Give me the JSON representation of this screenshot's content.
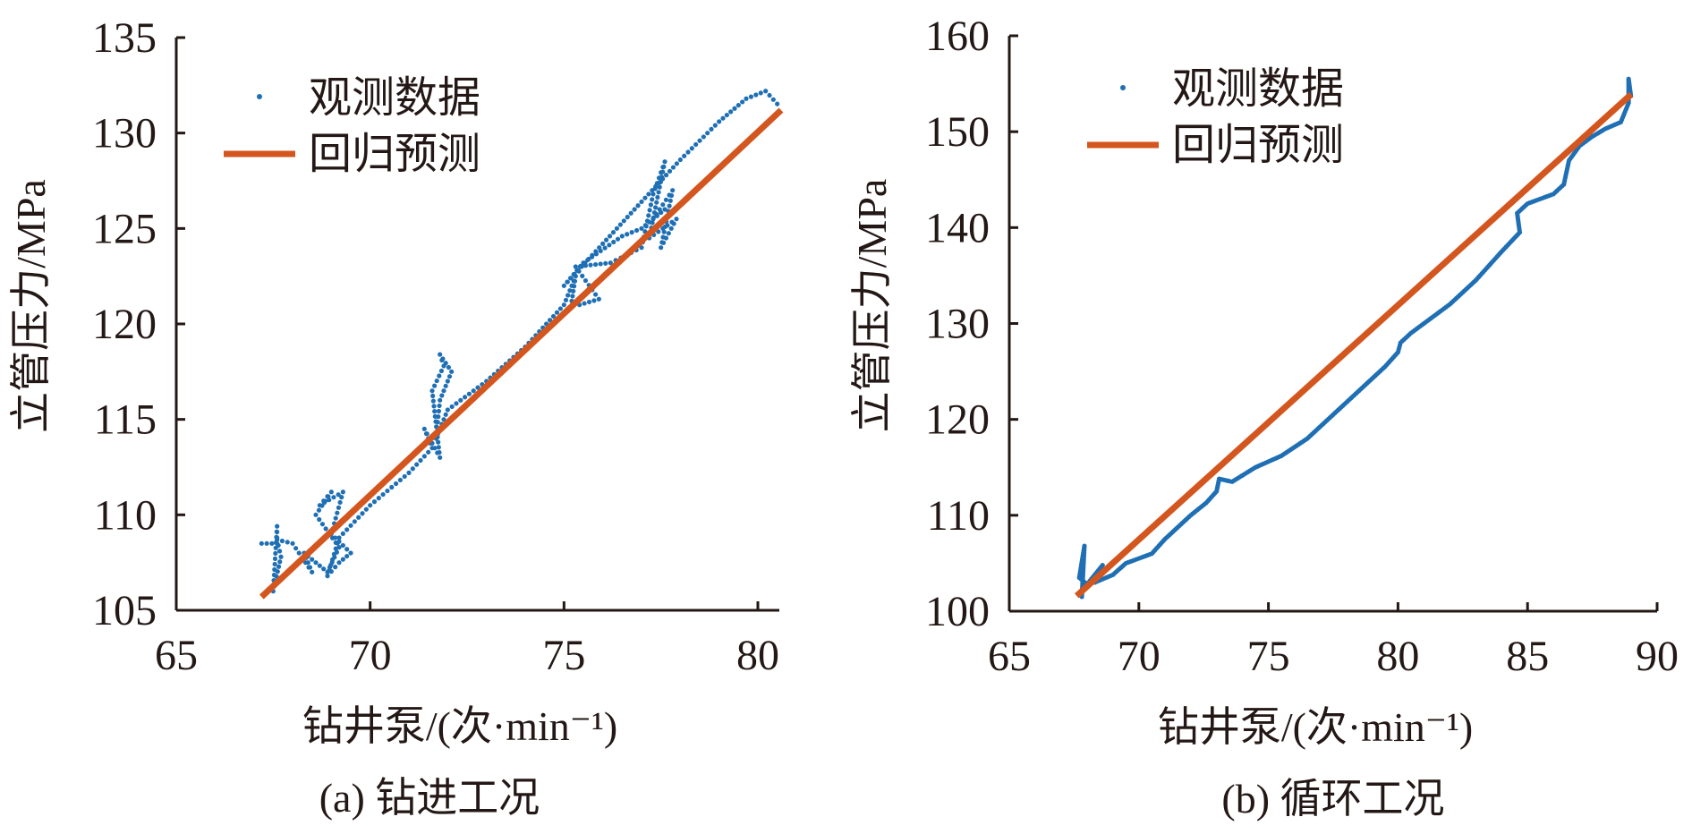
{
  "colors": {
    "observed": "#1f6fb4",
    "regression": "#d4561f",
    "axis": "#231815"
  },
  "chart_data": [
    {
      "type": "scatter",
      "title": "(a) 钻进工况",
      "xlabel": "钻井泵/(次·min⁻¹)",
      "ylabel": "立管压力/MPa",
      "xlim": [
        65,
        80.6
      ],
      "ylim": [
        105,
        135
      ],
      "xticks": [
        "65",
        "70",
        "75",
        "80"
      ],
      "yticks": [
        "105",
        "110",
        "115",
        "120",
        "125",
        "130",
        "135"
      ],
      "legend": {
        "position": "top-left",
        "entries": [
          "观测数据",
          "回归预测"
        ]
      },
      "series": [
        {
          "name": "观测数据",
          "kind": "dots",
          "x": [
            67.2,
            67.6,
            67.6,
            67.5,
            67.7,
            67.6,
            68.0,
            68.5,
            68.3,
            68.9,
            69.2,
            68.6,
            69.0,
            68.7,
            69.3,
            69.0,
            69.5,
            69.2,
            68.9,
            69.2,
            70.0,
            71.0,
            71.6,
            71.4,
            71.8,
            71.6,
            71.9,
            71.8,
            72.1,
            71.8,
            71.7,
            72.0,
            73.0,
            74.0,
            75.0,
            75.3,
            75.2,
            75.4,
            75.9,
            75.3,
            76.2,
            77.0,
            77.3,
            77.6,
            77.2,
            77.9,
            77.5,
            77.8,
            77.3,
            77.6,
            77.0,
            76.5,
            75.5,
            75.0,
            76.0,
            77.0,
            78.0,
            79.0,
            79.7,
            80.2,
            80.6
          ],
          "y": [
            108.5,
            108.5,
            109.4,
            106.0,
            107.8,
            108.7,
            108.5,
            107.0,
            108.0,
            107.0,
            108.3,
            110.0,
            111.2,
            110.5,
            111.2,
            109.0,
            108.0,
            107.5,
            106.8,
            108.8,
            110.5,
            112.2,
            113.5,
            114.5,
            113.0,
            116.5,
            117.8,
            118.4,
            117.5,
            116.0,
            114.0,
            115.5,
            117.0,
            118.8,
            121.0,
            122.5,
            121.2,
            121.0,
            121.3,
            123.0,
            123.2,
            124.0,
            126.8,
            128.5,
            124.5,
            125.5,
            124.0,
            127.0,
            125.5,
            126.0,
            125.0,
            124.6,
            123.2,
            122.0,
            124.2,
            126.4,
            128.6,
            130.6,
            131.8,
            132.2,
            131.3
          ]
        },
        {
          "name": "回归预测",
          "kind": "line",
          "x": [
            67.2,
            80.6
          ],
          "y": [
            105.7,
            131.2
          ]
        }
      ]
    },
    {
      "type": "scatter",
      "title": "(b) 循环工况",
      "xlabel": "钻井泵/(次·min⁻¹)",
      "ylabel": "立管压力/MPa",
      "xlim": [
        65,
        90
      ],
      "ylim": [
        100,
        160
      ],
      "xticks": [
        "65",
        "70",
        "75",
        "80",
        "85",
        "90"
      ],
      "yticks": [
        "100",
        "110",
        "120",
        "130",
        "140",
        "150",
        "160"
      ],
      "legend": {
        "position": "top-left",
        "entries": [
          "观测数据",
          "回归预测"
        ]
      },
      "series": [
        {
          "name": "观测数据",
          "kind": "dots",
          "x": [
            67.8,
            67.9,
            67.7,
            68.0,
            68.6,
            68.3,
            69.0,
            69.5,
            70.0,
            70.5,
            71.0,
            72.0,
            72.6,
            73.0,
            73.1,
            73.6,
            74.5,
            75.5,
            76.5,
            77.5,
            78.5,
            79.5,
            80.0,
            80.1,
            80.5,
            81.0,
            82.0,
            83.0,
            84.0,
            84.7,
            84.6,
            85.0,
            86.0,
            86.4,
            86.6,
            87.0,
            87.5,
            88.0,
            88.6,
            88.9,
            88.9,
            89.0
          ],
          "y": [
            101.5,
            106.8,
            103.5,
            102.8,
            104.8,
            103.0,
            103.8,
            105.0,
            105.5,
            106.0,
            107.5,
            110.0,
            111.3,
            112.5,
            113.8,
            113.5,
            115.0,
            116.2,
            118.0,
            120.5,
            123.0,
            125.5,
            127.0,
            128.0,
            129.0,
            130.0,
            132.0,
            134.5,
            137.5,
            139.5,
            141.5,
            142.5,
            143.5,
            144.5,
            147.0,
            148.5,
            149.5,
            150.3,
            151.0,
            153.0,
            155.5,
            153.5
          ]
        },
        {
          "name": "回归预测",
          "kind": "line",
          "x": [
            67.6,
            89.0
          ],
          "y": [
            101.6,
            153.9
          ]
        }
      ]
    }
  ]
}
